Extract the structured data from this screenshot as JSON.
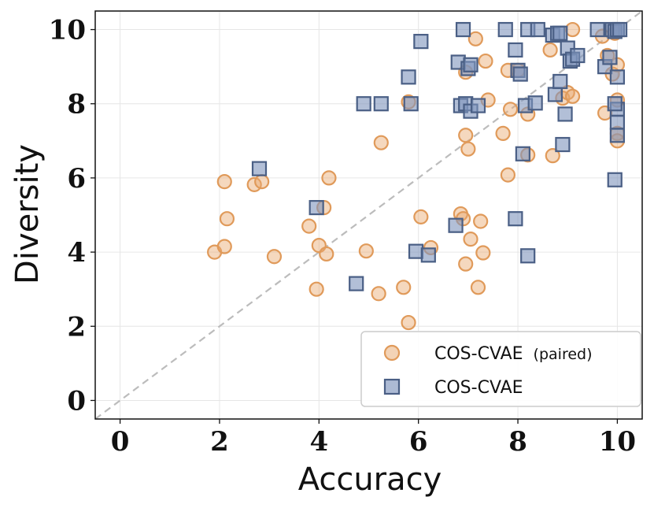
{
  "chart_data": {
    "type": "scatter",
    "title": "",
    "xlabel": "Accuracy",
    "ylabel": "Diversity",
    "xlim": [
      -0.5,
      10.5
    ],
    "ylim": [
      -0.5,
      10.5
    ],
    "xticks": [
      0,
      2,
      4,
      6,
      8,
      10
    ],
    "yticks": [
      0,
      2,
      4,
      6,
      8,
      10
    ],
    "grid": true,
    "diagonal_reference": "dashed y = x",
    "legend_position": "bottom-right",
    "series": [
      {
        "name": "COS-CVAE",
        "name_suffix": "(paired)",
        "marker": "circle",
        "color": "#e8a86e",
        "points": [
          [
            1.9,
            4.0
          ],
          [
            2.1,
            4.15
          ],
          [
            2.1,
            5.9
          ],
          [
            2.15,
            4.9
          ],
          [
            2.7,
            5.82
          ],
          [
            2.85,
            5.9
          ],
          [
            3.1,
            3.88
          ],
          [
            3.8,
            4.7
          ],
          [
            3.95,
            3.0
          ],
          [
            4.0,
            4.18
          ],
          [
            4.1,
            5.2
          ],
          [
            4.15,
            3.95
          ],
          [
            4.2,
            6.0
          ],
          [
            4.95,
            4.03
          ],
          [
            5.2,
            2.88
          ],
          [
            5.25,
            6.95
          ],
          [
            5.7,
            3.05
          ],
          [
            5.8,
            2.1
          ],
          [
            5.8,
            8.05
          ],
          [
            6.05,
            4.95
          ],
          [
            6.25,
            4.12
          ],
          [
            6.85,
            5.03
          ],
          [
            6.9,
            4.9
          ],
          [
            6.95,
            7.15
          ],
          [
            6.95,
            3.68
          ],
          [
            7.0,
            6.78
          ],
          [
            7.05,
            4.35
          ],
          [
            7.15,
            9.75
          ],
          [
            7.2,
            3.05
          ],
          [
            7.25,
            4.83
          ],
          [
            7.3,
            3.98
          ],
          [
            7.4,
            8.1
          ],
          [
            7.35,
            9.15
          ],
          [
            6.95,
            8.85
          ],
          [
            7.7,
            7.2
          ],
          [
            7.8,
            6.08
          ],
          [
            7.8,
            8.9
          ],
          [
            7.85,
            7.85
          ],
          [
            8.0,
            8.9
          ],
          [
            8.2,
            7.72
          ],
          [
            8.2,
            6.62
          ],
          [
            8.65,
            9.45
          ],
          [
            8.7,
            6.6
          ],
          [
            8.9,
            8.15
          ],
          [
            9.0,
            8.3
          ],
          [
            9.1,
            8.2
          ],
          [
            9.1,
            10.0
          ],
          [
            9.7,
            9.82
          ],
          [
            9.75,
            7.75
          ],
          [
            9.8,
            9.3
          ],
          [
            9.9,
            8.8
          ],
          [
            10.0,
            9.05
          ],
          [
            10.0,
            8.1
          ],
          [
            10.0,
            7.2
          ],
          [
            10.0,
            7.0
          ],
          [
            9.95,
            9.9
          ]
        ]
      },
      {
        "name": "COS-CVAE",
        "name_suffix": "",
        "marker": "square",
        "color": "#7f95bd",
        "edge_color": "#4a5f85",
        "points": [
          [
            2.8,
            6.25
          ],
          [
            3.95,
            5.2
          ],
          [
            4.75,
            3.15
          ],
          [
            4.9,
            8.0
          ],
          [
            5.25,
            8.0
          ],
          [
            5.8,
            8.72
          ],
          [
            5.85,
            8.0
          ],
          [
            5.95,
            4.02
          ],
          [
            6.05,
            9.68
          ],
          [
            6.2,
            3.92
          ],
          [
            6.75,
            4.72
          ],
          [
            6.8,
            9.12
          ],
          [
            6.85,
            7.95
          ],
          [
            6.9,
            10.0
          ],
          [
            6.95,
            8.0
          ],
          [
            7.0,
            8.95
          ],
          [
            7.05,
            9.05
          ],
          [
            7.05,
            7.8
          ],
          [
            7.2,
            7.95
          ],
          [
            7.75,
            10.0
          ],
          [
            7.95,
            9.45
          ],
          [
            7.95,
            4.9
          ],
          [
            8.0,
            8.9
          ],
          [
            8.05,
            8.8
          ],
          [
            8.1,
            6.65
          ],
          [
            8.15,
            7.95
          ],
          [
            8.2,
            3.9
          ],
          [
            8.2,
            10.0
          ],
          [
            8.35,
            8.02
          ],
          [
            8.4,
            10.0
          ],
          [
            8.7,
            9.85
          ],
          [
            8.75,
            8.25
          ],
          [
            8.8,
            9.9
          ],
          [
            8.85,
            8.6
          ],
          [
            8.85,
            9.9
          ],
          [
            8.9,
            6.9
          ],
          [
            8.95,
            7.72
          ],
          [
            9.0,
            9.5
          ],
          [
            9.05,
            9.15
          ],
          [
            9.1,
            9.2
          ],
          [
            9.2,
            9.3
          ],
          [
            9.6,
            10.0
          ],
          [
            9.75,
            9.0
          ],
          [
            9.85,
            9.25
          ],
          [
            9.9,
            10.0
          ],
          [
            9.95,
            9.95
          ],
          [
            10.0,
            10.0
          ],
          [
            10.0,
            8.72
          ],
          [
            10.0,
            7.85
          ],
          [
            10.0,
            7.5
          ],
          [
            10.0,
            7.15
          ],
          [
            9.95,
            5.95
          ],
          [
            9.95,
            8.0
          ],
          [
            10.05,
            10.0
          ]
        ]
      }
    ]
  }
}
